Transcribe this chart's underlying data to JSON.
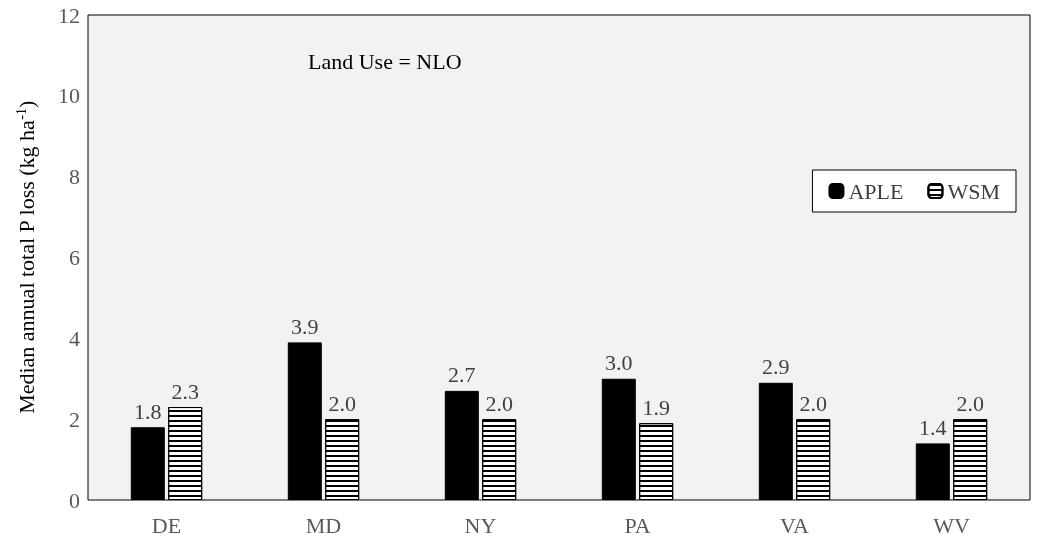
{
  "chart_data": {
    "type": "bar",
    "ylabel": "Median annual total P loss (kg ha$^{-1}$)",
    "annotations": [
      "Land Use = NLO"
    ],
    "categories": [
      "DE",
      "MD",
      "NY",
      "PA",
      "VA",
      "WV"
    ],
    "series": [
      {
        "name": "APLE",
        "color": "#000000",
        "values": [
          1.8,
          3.9,
          2.7,
          3.0,
          2.9,
          1.4
        ],
        "value_labels": [
          "1.8",
          "3.9",
          "2.7",
          "3.0",
          "2.9",
          "1.4"
        ]
      },
      {
        "name": "WSM",
        "color": "#ffffff",
        "values": [
          2.3,
          2.0,
          2.0,
          1.9,
          2.0,
          2.0
        ],
        "value_labels": [
          "2.3",
          "2.0",
          "2.0",
          "1.9",
          "2.0",
          "2.0"
        ]
      }
    ],
    "ylim": [
      0,
      12
    ],
    "yticks": [
      0,
      2,
      4,
      6,
      8,
      10,
      12
    ],
    "grid": false,
    "legend": "top right"
  }
}
